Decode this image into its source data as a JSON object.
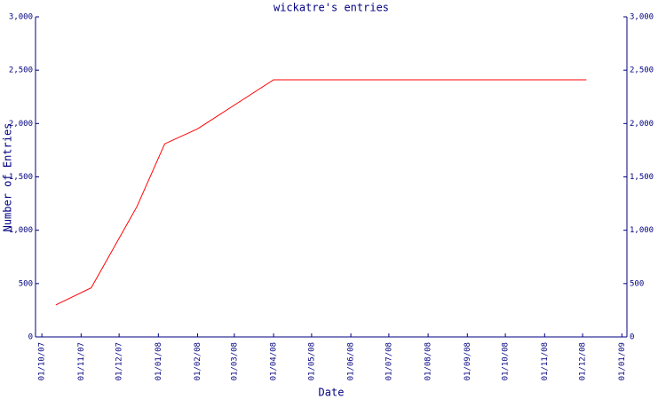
{
  "chart_data": {
    "type": "line",
    "title": "wickatre's entries",
    "xlabel": "Date",
    "ylabel": "Number of Entries",
    "x": [
      "2007-10-12",
      "2007-11-09",
      "2007-12-15",
      "2008-01-06",
      "2008-02-01",
      "2008-04-01",
      "2008-12-04"
    ],
    "series": [
      {
        "name": "Entries",
        "color": "#ff0000",
        "values": [
          300,
          460,
          1220,
          1810,
          1950,
          2410,
          2410
        ]
      }
    ],
    "xlim": [
      "2007-09-26",
      "2009-01-05"
    ],
    "xticks": [
      {
        "value": "2007-10-01",
        "label": "01/10/07"
      },
      {
        "value": "2007-11-01",
        "label": "01/11/07"
      },
      {
        "value": "2007-12-01",
        "label": "01/12/07"
      },
      {
        "value": "2008-01-01",
        "label": "01/01/08"
      },
      {
        "value": "2008-02-01",
        "label": "01/02/08"
      },
      {
        "value": "2008-03-01",
        "label": "01/03/08"
      },
      {
        "value": "2008-04-01",
        "label": "01/04/08"
      },
      {
        "value": "2008-05-01",
        "label": "01/05/08"
      },
      {
        "value": "2008-06-01",
        "label": "01/06/08"
      },
      {
        "value": "2008-07-01",
        "label": "01/07/08"
      },
      {
        "value": "2008-08-01",
        "label": "01/08/08"
      },
      {
        "value": "2008-09-01",
        "label": "01/09/08"
      },
      {
        "value": "2008-10-01",
        "label": "01/10/08"
      },
      {
        "value": "2008-11-01",
        "label": "01/11/08"
      },
      {
        "value": "2008-12-01",
        "label": "01/12/08"
      },
      {
        "value": "2009-01-01",
        "label": "01/01/09"
      }
    ],
    "ylim": [
      0,
      3000
    ],
    "yticks": [
      0,
      500,
      {
        "value": 1000,
        "label": "1,000"
      },
      {
        "value": 1500,
        "label": "1,500"
      },
      {
        "value": 2000,
        "label": "2,000"
      },
      {
        "value": 2500,
        "label": "2,500"
      },
      {
        "value": 3000,
        "label": "3,000"
      }
    ],
    "axis_color": "#000080"
  }
}
